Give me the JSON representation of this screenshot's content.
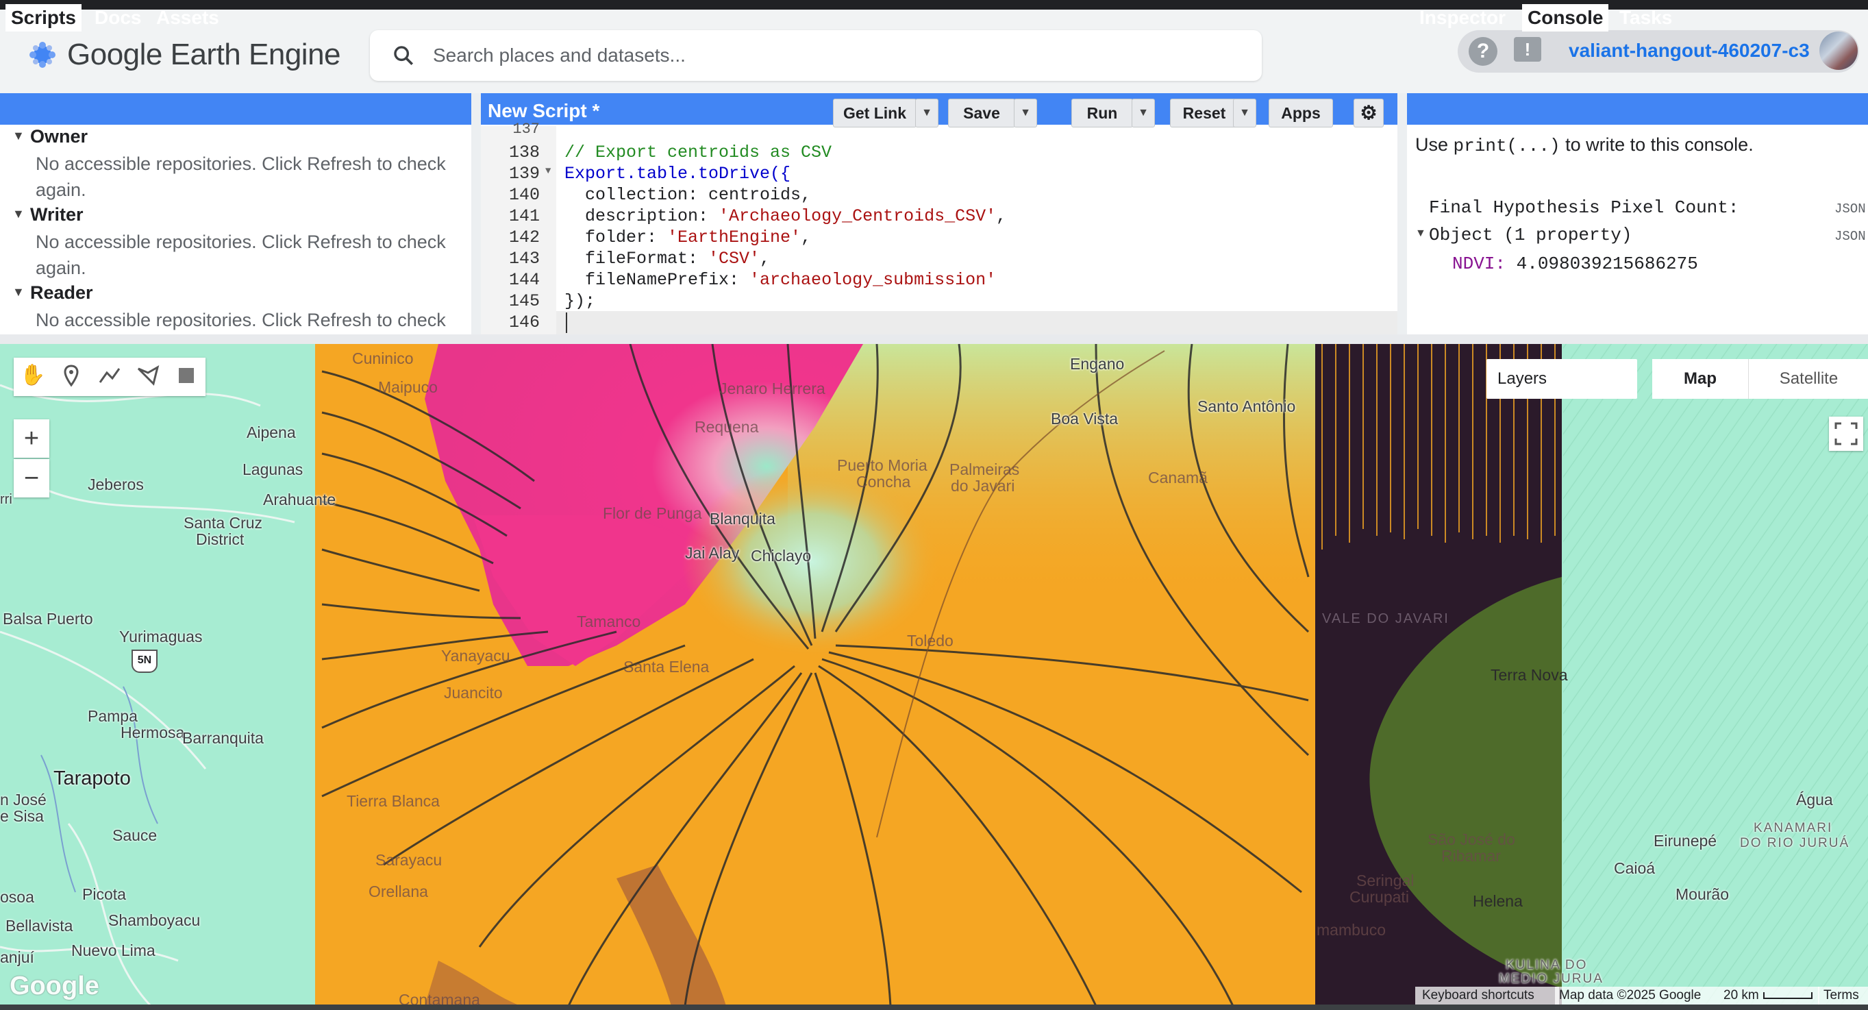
{
  "header": {
    "app_name": "Google Earth Engine",
    "search_placeholder": "Search places and datasets...",
    "help_icon": "question-circle-icon",
    "feedback_icon": "feedback-icon",
    "account_name": "valiant-hangout-460207-c3"
  },
  "left_panel": {
    "tabs": [
      "Scripts",
      "Docs",
      "Assets"
    ],
    "sections": [
      {
        "label": "Owner",
        "message_line1": "No accessible repositories. Click Refresh to check",
        "message_line2": "again."
      },
      {
        "label": "Writer",
        "message_line1": "No accessible repositories. Click Refresh to check",
        "message_line2": "again."
      },
      {
        "label": "Reader",
        "message_line1": "No accessible repositories. Click Refresh to check",
        "message_line2": ""
      }
    ]
  },
  "editor": {
    "title": "New Script *",
    "buttons": {
      "get_link": "Get Link",
      "save": "Save",
      "run": "Run",
      "reset": "Reset",
      "apps": "Apps"
    },
    "lines": [
      {
        "num": "137",
        "text": ""
      },
      {
        "num": "138",
        "text": "// Export centroids as CSV"
      },
      {
        "num": "139",
        "text": "Export.table.toDrive({"
      },
      {
        "num": "140",
        "text": "  collection: centroids,"
      },
      {
        "num": "141",
        "text_key": "  description: ",
        "text_val": "'Archaeology_Centroids_CSV'",
        "text_end": ","
      },
      {
        "num": "142",
        "text_key": "  folder: ",
        "text_val": "'EarthEngine'",
        "text_end": ","
      },
      {
        "num": "143",
        "text_key": "  fileFormat: ",
        "text_val": "'CSV'",
        "text_end": ","
      },
      {
        "num": "144",
        "text_key": "  fileNamePrefix: ",
        "text_val": "'archaeology_submission'",
        "text_end": ""
      },
      {
        "num": "145",
        "text": "});"
      },
      {
        "num": "146",
        "text": ""
      }
    ]
  },
  "console": {
    "tabs": [
      "Inspector",
      "Console",
      "Tasks"
    ],
    "hint_prefix": "Use ",
    "hint_code": "print(...)",
    "hint_suffix": " to write to this console.",
    "output1": "Final Hypothesis Pixel Count:",
    "output2": "Object (1 property)",
    "prop_key": "NDVI:",
    "prop_value": "4.098039215686275",
    "json_tag": "JSON"
  },
  "map": {
    "layers_label": "Layers",
    "map_type_map": "Map",
    "map_type_satellite": "Satellite",
    "zoom_in": "+",
    "zoom_out": "−",
    "google_logo": "Google",
    "attribution": {
      "shortcuts": "Keyboard shortcuts",
      "data": "Map data ©2025 Google",
      "scale": "20 km",
      "terms": "Terms"
    },
    "route_shield": "5N",
    "places": {
      "cuninico": "Cuninico",
      "maipuco": "Maipuco",
      "jenaro": "Jenaro Herrera",
      "requena": "Requena",
      "aipena": "Aipena",
      "lagunas": "Lagunas",
      "arahuante": "Arahuante",
      "jeberos": "Jeberos",
      "santa_cruz": "Santa Cruz",
      "district": "District",
      "flor": "Flor de Punga",
      "blanquita": "Blanquita",
      "jai_alay": "Jai Alay",
      "chiclayo": "Chiclayo",
      "puerto_moria": "Puerto Moria",
      "concha": "Concha",
      "palmeiras": "Palmeiras",
      "do_javari": "do Javari",
      "engano": "Engano",
      "boa_vista": "Boa Vista",
      "santo_antonio": "Santo Antônio",
      "canama": "Canamã",
      "balsa": "Balsa Puerto",
      "yurimaguas": "Yurimaguas",
      "tamanco": "Tamanco",
      "yanayacu": "Yanayacu",
      "santa_elena": "Santa Elena",
      "juancito": "Juancito",
      "toledo": "Toledo",
      "vale_javari": "VALE DO JAVARI",
      "terra_nova": "Terra Nova",
      "pampa": "Pampa",
      "hermosa": "Hermosa",
      "barranquita": "Barranquita",
      "tarapoto": "Tarapoto",
      "jose": "n José",
      "sisa": "e Sisa",
      "sauce": "Sauce",
      "tierra_blanca": "Tierra Blanca",
      "sarayacu": "Sarayacu",
      "orellana": "Orellana",
      "picota": "Picota",
      "bellavista": "Bellavista",
      "shamboyacu": "Shamboyacu",
      "nuevo_lima": "Nuevo Lima",
      "osoa": "osoa",
      "anjui": "anjuí",
      "contamana": "Contamana",
      "sao_jose": "São José do",
      "ribamar": "Ribamar",
      "seringal": "Seringal",
      "curupati": "Curupati",
      "helena": "Helena",
      "mambuco": "mambuco",
      "kulina1": "KULINA DO",
      "kulina2": "MEDIO JURUA",
      "agua": "Água",
      "eirunepe": "Eirunepé",
      "caioa": "Caioá",
      "mourao": "Mourão",
      "kanamari1": "KANAMARI",
      "kanamari2": "DO RIO JURUÁ",
      "irr": "rri"
    }
  },
  "colors": {
    "panel_blue": "#4285f4",
    "orange": "#f5a623",
    "pink": "#f0358c",
    "dark": "#2b1a2a",
    "green": "#4e6b2a",
    "land": "#a7ecd2"
  }
}
